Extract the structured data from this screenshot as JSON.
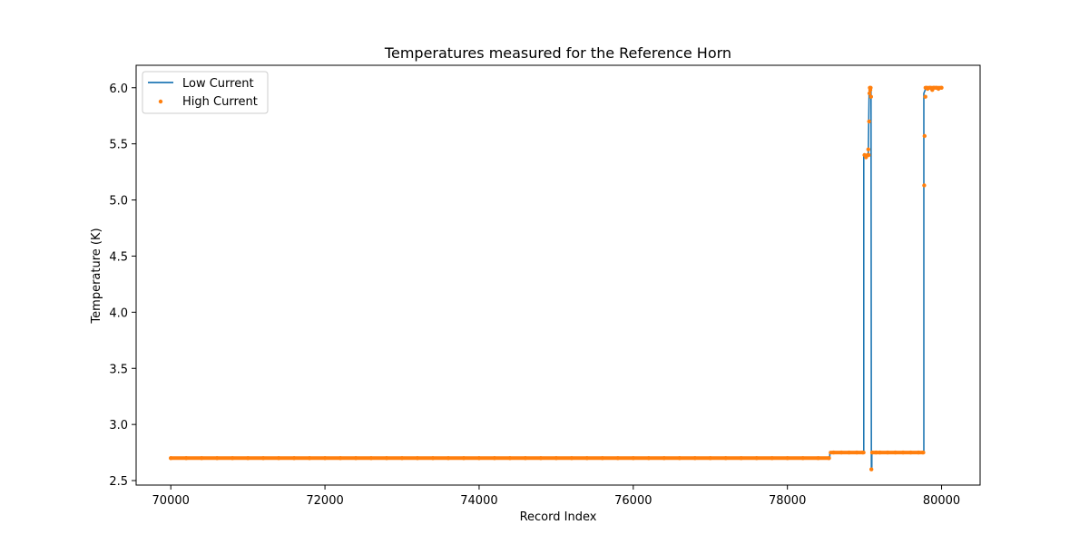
{
  "chart_data": {
    "type": "line",
    "title": "Temperatures measured for the Reference Horn",
    "xlabel": "Record Index",
    "ylabel": "Temperature (K)",
    "xlim": [
      69550,
      80500
    ],
    "ylim": [
      2.46,
      6.2
    ],
    "xticks": [
      70000,
      72000,
      74000,
      76000,
      78000,
      80000
    ],
    "yticks": [
      2.5,
      3.0,
      3.5,
      4.0,
      4.5,
      5.0,
      5.5,
      6.0
    ],
    "grid": false,
    "legend_position": "upper-left",
    "series": [
      {
        "name": "Low Current",
        "kind": "line",
        "color": "#1f77b4",
        "x": [
          70000,
          78550,
          78550,
          78990,
          78990,
          79050,
          79060,
          79070,
          79080,
          79085,
          79090,
          79095,
          79095,
          79770,
          79770,
          79800,
          79850,
          79900,
          80000
        ],
        "y": [
          2.7,
          2.7,
          2.75,
          2.75,
          5.4,
          5.4,
          5.95,
          6.0,
          6.0,
          5.97,
          2.6,
          2.62,
          2.75,
          2.75,
          5.95,
          6.0,
          5.99,
          6.0,
          6.0
        ]
      },
      {
        "name": "High Current",
        "kind": "scatter",
        "color": "#ff7f0e",
        "x": [
          70000,
          70200,
          70400,
          70600,
          70800,
          71000,
          71200,
          71400,
          71600,
          71800,
          72000,
          72200,
          72400,
          72600,
          72800,
          73000,
          73200,
          73400,
          73600,
          73800,
          74000,
          74200,
          74400,
          74600,
          74800,
          75000,
          75200,
          75400,
          75600,
          75800,
          76000,
          76200,
          76400,
          76600,
          76800,
          77000,
          77200,
          77400,
          77600,
          77800,
          78000,
          78200,
          78400,
          78540,
          78600,
          78700,
          78800,
          78900,
          78980,
          79000,
          79020,
          79040,
          79050,
          79055,
          79060,
          79065,
          79070,
          79075,
          79080,
          79085,
          79090,
          79100,
          79150,
          79200,
          79300,
          79400,
          79500,
          79600,
          79700,
          79760,
          79775,
          79780,
          79790,
          79800,
          79820,
          79850,
          79880,
          79900,
          79930,
          79960,
          80000
        ],
        "y": [
          2.7,
          2.7,
          2.7,
          2.7,
          2.7,
          2.7,
          2.7,
          2.7,
          2.7,
          2.7,
          2.7,
          2.7,
          2.7,
          2.7,
          2.7,
          2.7,
          2.7,
          2.7,
          2.7,
          2.7,
          2.7,
          2.7,
          2.7,
          2.7,
          2.7,
          2.7,
          2.7,
          2.7,
          2.7,
          2.7,
          2.7,
          2.7,
          2.7,
          2.7,
          2.7,
          2.7,
          2.7,
          2.7,
          2.7,
          2.7,
          2.7,
          2.7,
          2.7,
          2.7,
          2.75,
          2.75,
          2.75,
          2.75,
          2.75,
          5.4,
          5.38,
          5.4,
          5.45,
          5.4,
          5.7,
          5.95,
          6.0,
          5.98,
          6.0,
          5.92,
          2.6,
          2.75,
          2.75,
          2.75,
          2.75,
          2.75,
          2.75,
          2.75,
          2.75,
          2.75,
          5.13,
          5.57,
          5.92,
          6.0,
          5.99,
          6.0,
          5.98,
          6.0,
          6.0,
          5.99,
          6.0
        ]
      }
    ]
  }
}
